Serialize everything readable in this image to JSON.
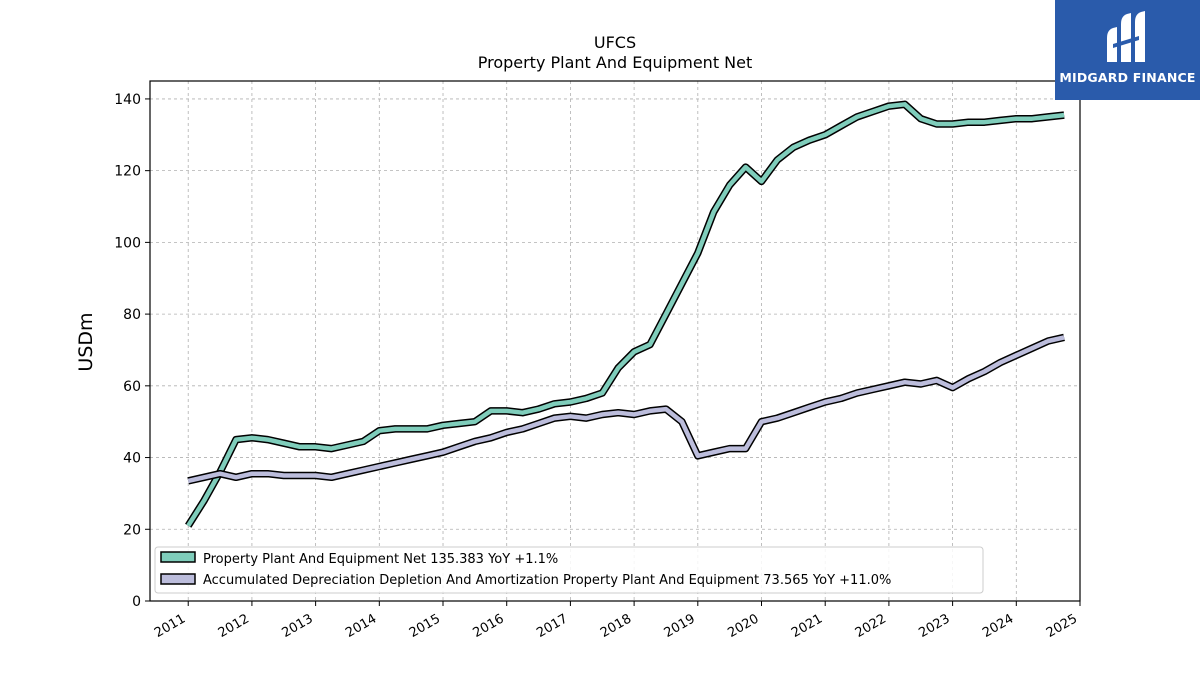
{
  "logo": {
    "text": "MIDGARD FINANCE",
    "color": "#2a5bab"
  },
  "chart_data": {
    "type": "line",
    "title": "UFCS",
    "subtitle": "Property Plant And Equipment Net",
    "ylabel": "USDm",
    "ylim": [
      0,
      145
    ],
    "yticks": [
      0,
      20,
      40,
      60,
      80,
      100,
      120,
      140
    ],
    "xlim": [
      2010.4,
      2025.0
    ],
    "xticks": [
      "2011",
      "2012",
      "2013",
      "2014",
      "2015",
      "2016",
      "2017",
      "2018",
      "2019",
      "2020",
      "2021",
      "2022",
      "2023",
      "2024",
      "2025"
    ],
    "grid": true,
    "legend_position": "lower-left",
    "series": [
      {
        "name": "Property Plant And Equipment Net",
        "legend_label": "Property Plant And Equipment Net  135.383 YoY +1.1%",
        "color": "#7fcdbb",
        "x": [
          2011.0,
          2011.25,
          2011.5,
          2011.75,
          2012.0,
          2012.25,
          2012.5,
          2012.75,
          2013.0,
          2013.25,
          2013.5,
          2013.75,
          2014.0,
          2014.25,
          2014.5,
          2014.75,
          2015.0,
          2015.25,
          2015.5,
          2015.75,
          2016.0,
          2016.25,
          2016.5,
          2016.75,
          2017.0,
          2017.25,
          2017.5,
          2017.75,
          2018.0,
          2018.25,
          2018.5,
          2018.75,
          2019.0,
          2019.25,
          2019.5,
          2019.75,
          2020.0,
          2020.25,
          2020.5,
          2020.75,
          2021.0,
          2021.25,
          2021.5,
          2021.75,
          2022.0,
          2022.25,
          2022.5,
          2022.75,
          2023.0,
          2023.25,
          2023.5,
          2023.75,
          2024.0,
          2024.25,
          2024.5,
          2024.75
        ],
        "y": [
          21.0,
          28.0,
          36.0,
          45.0,
          45.5,
          45.0,
          44.0,
          43.0,
          43.0,
          42.5,
          43.5,
          44.5,
          47.5,
          48.0,
          48.0,
          48.0,
          49.0,
          49.5,
          50.0,
          53.0,
          53.0,
          52.5,
          53.5,
          55.0,
          55.5,
          56.5,
          58.0,
          65.0,
          69.5,
          71.5,
          80.0,
          88.5,
          97.0,
          108.5,
          116.0,
          121.0,
          117.0,
          123.0,
          126.5,
          128.5,
          130.0,
          132.5,
          135.0,
          136.5,
          138.0,
          138.5,
          134.5,
          133.0,
          133.0,
          133.5,
          133.5,
          134.0,
          134.5,
          134.5,
          135.0,
          135.5
        ]
      },
      {
        "name": "Accumulated Depreciation Depletion And Amortization Property Plant And Equipment",
        "legend_label": "Accumulated Depreciation Depletion And Amortization Property Plant And Equipment  73.565 YoY +11.0%",
        "color": "#bcbddc",
        "x": [
          2011.0,
          2011.25,
          2011.5,
          2011.75,
          2012.0,
          2012.25,
          2012.5,
          2012.75,
          2013.0,
          2013.25,
          2013.5,
          2013.75,
          2014.0,
          2014.25,
          2014.5,
          2014.75,
          2015.0,
          2015.25,
          2015.5,
          2015.75,
          2016.0,
          2016.25,
          2016.5,
          2016.75,
          2017.0,
          2017.25,
          2017.5,
          2017.75,
          2018.0,
          2018.25,
          2018.5,
          2018.75,
          2019.0,
          2019.25,
          2019.5,
          2019.75,
          2020.0,
          2020.25,
          2020.5,
          2020.75,
          2021.0,
          2021.25,
          2021.5,
          2021.75,
          2022.0,
          2022.25,
          2022.5,
          2022.75,
          2023.0,
          2023.25,
          2023.5,
          2023.75,
          2024.0,
          2024.25,
          2024.5,
          2024.75
        ],
        "y": [
          33.5,
          34.5,
          35.5,
          34.5,
          35.5,
          35.5,
          35.0,
          35.0,
          35.0,
          34.5,
          35.5,
          36.5,
          37.5,
          38.5,
          39.5,
          40.5,
          41.5,
          43.0,
          44.5,
          45.5,
          47.0,
          48.0,
          49.5,
          51.0,
          51.5,
          51.0,
          52.0,
          52.5,
          52.0,
          53.0,
          53.5,
          50.0,
          40.5,
          41.5,
          42.5,
          42.5,
          50.0,
          51.0,
          52.5,
          54.0,
          55.5,
          56.5,
          58.0,
          59.0,
          60.0,
          61.0,
          60.5,
          61.5,
          59.5,
          62.0,
          64.0,
          66.5,
          68.5,
          70.5,
          72.5,
          73.5
        ]
      }
    ]
  }
}
